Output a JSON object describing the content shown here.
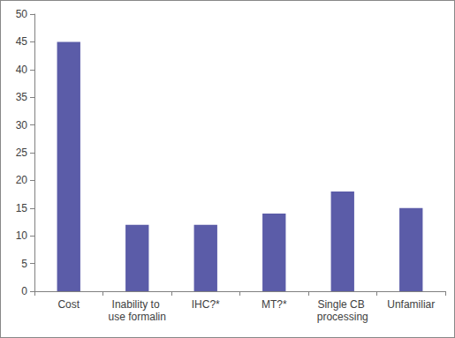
{
  "chart_data": {
    "type": "bar",
    "categories": [
      "Cost",
      "Inability to use formalin",
      "IHC?*",
      "MT?*",
      "Single CB processing",
      "Unfamiliar"
    ],
    "values": [
      45,
      12,
      12,
      14,
      18,
      15
    ],
    "color": "#5b5ca8",
    "ylim": [
      0,
      50
    ],
    "yticks": [
      0,
      5,
      10,
      15,
      20,
      25,
      30,
      35,
      40,
      45,
      50
    ],
    "grid": false
  }
}
